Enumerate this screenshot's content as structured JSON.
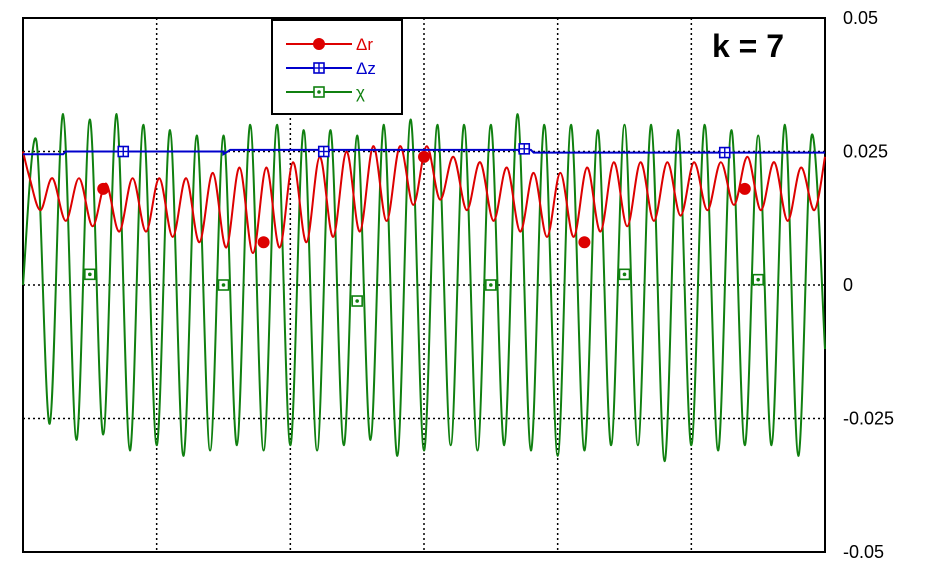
{
  "chart_data": {
    "type": "line",
    "annotation": "k = 7",
    "ylabel": "",
    "ylim": [
      -0.05,
      0.05
    ],
    "xlim": [
      0,
      6
    ],
    "y_ticks": [
      0.05,
      0.025,
      0,
      -0.025,
      -0.05
    ],
    "y_tick_labels": [
      "0.05",
      "0.025",
      "0",
      "-0.025",
      "-0.05"
    ],
    "x_gridlines": [
      1,
      2,
      3,
      4,
      5
    ],
    "grid": true,
    "legend_position": "top-center",
    "series": [
      {
        "name": "Δr",
        "color": "#dd0000",
        "marker": "filled-circle",
        "x": [
          0.0,
          0.05,
          0.13,
          0.22,
          0.32,
          0.42,
          0.52,
          0.62,
          0.72,
          0.82,
          0.92,
          1.02,
          1.12,
          1.22,
          1.32,
          1.42,
          1.52,
          1.62,
          1.72,
          1.82,
          1.92,
          2.02,
          2.12,
          2.22,
          2.32,
          2.42,
          2.52,
          2.62,
          2.72,
          2.82,
          2.92,
          3.02,
          3.12,
          3.22,
          3.32,
          3.42,
          3.52,
          3.62,
          3.72,
          3.82,
          3.92,
          4.02,
          4.12,
          4.22,
          4.32,
          4.42,
          4.52,
          4.62,
          4.72,
          4.82,
          4.92,
          5.02,
          5.12,
          5.22,
          5.32,
          5.42,
          5.52,
          5.62,
          5.72,
          5.82,
          5.92,
          6.0
        ],
        "y": [
          0.025,
          0.02,
          0.014,
          0.02,
          0.012,
          0.02,
          0.011,
          0.019,
          0.01,
          0.02,
          0.01,
          0.02,
          0.009,
          0.02,
          0.008,
          0.021,
          0.007,
          0.022,
          0.006,
          0.022,
          0.007,
          0.023,
          0.008,
          0.024,
          0.009,
          0.025,
          0.01,
          0.026,
          0.012,
          0.026,
          0.015,
          0.026,
          0.016,
          0.024,
          0.014,
          0.023,
          0.012,
          0.022,
          0.01,
          0.021,
          0.009,
          0.021,
          0.009,
          0.022,
          0.01,
          0.023,
          0.011,
          0.023,
          0.012,
          0.023,
          0.013,
          0.023,
          0.014,
          0.023,
          0.015,
          0.024,
          0.014,
          0.023,
          0.012,
          0.022,
          0.014,
          0.024
        ],
        "marker_x": [
          0.6,
          1.8,
          3.0,
          4.2,
          5.4
        ],
        "marker_y": [
          0.018,
          0.008,
          0.024,
          0.008,
          0.018
        ]
      },
      {
        "name": "Δz",
        "color": "#0000cc",
        "marker": "boxed-plus",
        "x": [
          0.0,
          0.3,
          0.32,
          1.5,
          1.5,
          1.55,
          3.0,
          3.8,
          3.82,
          6.0
        ],
        "y": [
          0.0245,
          0.0245,
          0.025,
          0.025,
          0.0245,
          0.0253,
          0.0253,
          0.0253,
          0.0248,
          0.0248
        ],
        "marker_x": [
          0.75,
          2.25,
          3.75,
          5.25
        ],
        "marker_y": [
          0.025,
          0.025,
          0.0255,
          0.0248
        ]
      },
      {
        "name": "χ",
        "color": "#108010",
        "marker": "boxed-dot",
        "x": [
          0.0,
          0.1,
          0.2,
          0.3,
          0.4,
          0.5,
          0.6,
          0.7,
          0.8,
          0.9,
          1.0,
          1.1,
          1.2,
          1.3,
          1.4,
          1.5,
          1.6,
          1.7,
          1.8,
          1.9,
          2.0,
          2.1,
          2.2,
          2.3,
          2.4,
          2.5,
          2.6,
          2.7,
          2.8,
          2.9,
          3.0,
          3.1,
          3.2,
          3.3,
          3.4,
          3.5,
          3.6,
          3.7,
          3.8,
          3.9,
          4.0,
          4.1,
          4.2,
          4.3,
          4.4,
          4.5,
          4.6,
          4.7,
          4.8,
          4.9,
          5.0,
          5.1,
          5.2,
          5.3,
          5.4,
          5.5,
          5.6,
          5.7,
          5.8,
          5.9,
          6.0
        ],
        "y": [
          0.0,
          0.027,
          -0.026,
          0.032,
          -0.029,
          0.031,
          -0.028,
          0.032,
          -0.031,
          0.03,
          -0.03,
          0.029,
          -0.032,
          0.028,
          -0.031,
          0.028,
          -0.03,
          0.03,
          -0.031,
          0.03,
          -0.03,
          0.029,
          -0.031,
          0.029,
          -0.03,
          0.028,
          -0.029,
          0.03,
          -0.032,
          0.031,
          -0.031,
          0.03,
          -0.03,
          0.03,
          -0.031,
          0.03,
          -0.03,
          0.032,
          -0.031,
          0.03,
          -0.032,
          0.03,
          -0.031,
          0.029,
          -0.03,
          0.03,
          -0.03,
          0.03,
          -0.033,
          0.029,
          -0.03,
          0.03,
          -0.031,
          0.029,
          -0.03,
          0.028,
          -0.03,
          0.03,
          -0.032,
          0.028,
          -0.012
        ],
        "marker_x": [
          0.5,
          1.5,
          2.5,
          3.5,
          4.5,
          5.5
        ],
        "marker_y": [
          0.002,
          0.0,
          -0.003,
          0.0,
          0.002,
          0.001
        ]
      }
    ]
  }
}
